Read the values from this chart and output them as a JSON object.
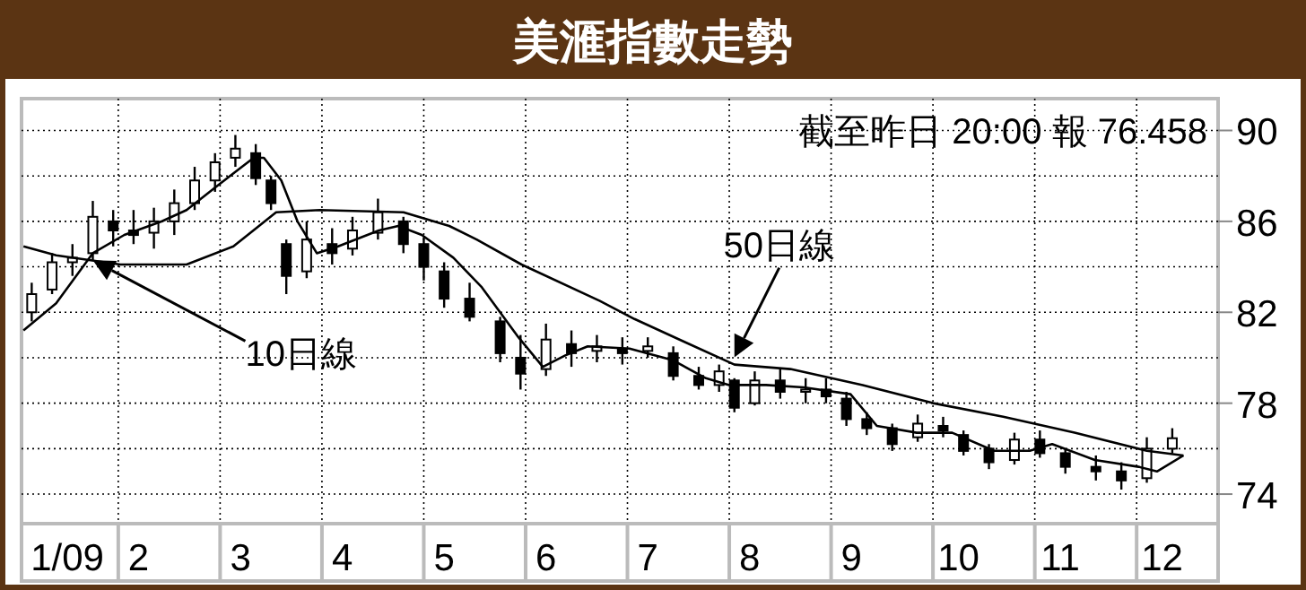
{
  "chart_data": {
    "type": "candlestick",
    "title": "美滙指數走勢",
    "annotations": [
      "截至昨日 20:00 報 76.458"
    ],
    "x": [
      1.15,
      1.35,
      1.55,
      1.75,
      1.95,
      2.15,
      2.35,
      2.55,
      2.75,
      2.95,
      3.15,
      3.35,
      3.5,
      3.65,
      3.85,
      4.1,
      4.3,
      4.55,
      4.8,
      5.0,
      5.2,
      5.45,
      5.75,
      5.95,
      6.2,
      6.45,
      6.7,
      6.95,
      7.2,
      7.45,
      7.7,
      7.9,
      8.05,
      8.25,
      8.5,
      8.75,
      8.95,
      9.15,
      9.35,
      9.6,
      9.85,
      10.1,
      10.3,
      10.55,
      10.8,
      11.05,
      11.3,
      11.6,
      11.85,
      12.1,
      12.35
    ],
    "ohlc": [
      [
        82.0,
        83.3,
        81.6,
        82.8
      ],
      [
        83.0,
        84.6,
        82.8,
        84.2
      ],
      [
        84.2,
        85.0,
        83.6,
        84.4
      ],
      [
        84.6,
        86.9,
        84.3,
        86.2
      ],
      [
        86.0,
        86.5,
        84.9,
        85.6
      ],
      [
        85.6,
        86.5,
        85.0,
        85.4
      ],
      [
        85.5,
        86.6,
        84.8,
        86.0
      ],
      [
        86.0,
        87.4,
        85.4,
        86.8
      ],
      [
        86.8,
        88.4,
        86.5,
        87.8
      ],
      [
        87.8,
        89.0,
        87.3,
        88.6
      ],
      [
        88.8,
        89.8,
        88.4,
        89.2
      ],
      [
        89.0,
        89.4,
        87.6,
        87.9
      ],
      [
        87.8,
        88.0,
        86.5,
        86.8
      ],
      [
        85.0,
        85.2,
        82.8,
        83.6
      ],
      [
        83.8,
        86.0,
        83.5,
        85.2
      ],
      [
        85.0,
        85.7,
        84.1,
        84.6
      ],
      [
        84.8,
        86.2,
        84.5,
        85.6
      ],
      [
        85.5,
        87.0,
        85.2,
        86.4
      ],
      [
        86.0,
        86.2,
        84.6,
        85.0
      ],
      [
        85.0,
        85.3,
        83.4,
        84.0
      ],
      [
        83.8,
        84.2,
        82.2,
        82.6
      ],
      [
        82.6,
        83.3,
        81.6,
        81.8
      ],
      [
        81.6,
        81.8,
        79.8,
        80.2
      ],
      [
        80.0,
        81.0,
        78.6,
        79.3
      ],
      [
        79.5,
        81.5,
        79.2,
        80.8
      ],
      [
        80.6,
        81.2,
        79.6,
        80.2
      ],
      [
        80.3,
        81.0,
        79.8,
        80.5
      ],
      [
        80.4,
        80.9,
        79.7,
        80.2
      ],
      [
        80.3,
        80.9,
        80.0,
        80.5
      ],
      [
        80.2,
        80.5,
        79.0,
        79.2
      ],
      [
        79.2,
        79.6,
        78.6,
        78.8
      ],
      [
        78.8,
        79.7,
        78.5,
        79.4
      ],
      [
        79.0,
        79.1,
        77.6,
        77.8
      ],
      [
        78.0,
        79.4,
        77.9,
        79.0
      ],
      [
        79.0,
        79.5,
        78.2,
        78.5
      ],
      [
        78.5,
        79.1,
        78.0,
        78.6
      ],
      [
        78.6,
        79.1,
        78.0,
        78.3
      ],
      [
        78.2,
        78.5,
        77.0,
        77.3
      ],
      [
        77.3,
        77.6,
        76.6,
        76.9
      ],
      [
        76.9,
        77.1,
        75.9,
        76.2
      ],
      [
        76.5,
        77.5,
        76.3,
        77.1
      ],
      [
        77.0,
        77.4,
        76.5,
        76.8
      ],
      [
        76.6,
        76.8,
        75.7,
        75.9
      ],
      [
        76.0,
        76.2,
        75.1,
        75.4
      ],
      [
        75.5,
        76.7,
        75.3,
        76.4
      ],
      [
        76.4,
        76.8,
        75.6,
        75.8
      ],
      [
        75.8,
        76.0,
        74.9,
        75.2
      ],
      [
        75.2,
        75.7,
        74.6,
        75.0
      ],
      [
        75.0,
        75.4,
        74.2,
        74.6
      ],
      [
        74.7,
        76.5,
        74.5,
        76.0
      ],
      [
        76.0,
        76.9,
        75.8,
        76.458
      ]
    ],
    "series": [
      {
        "name": "10日線",
        "type": "line",
        "color": "#000000",
        "x": [
          1.07,
          1.39,
          1.75,
          2.06,
          2.43,
          2.67,
          2.98,
          3.33,
          3.43,
          3.6,
          3.76,
          3.95,
          4.16,
          4.56,
          4.75,
          4.98,
          5.29,
          5.57,
          5.93,
          6.17,
          6.39,
          6.61,
          7.02,
          7.44,
          7.77,
          8.0,
          8.36,
          8.73,
          9.19,
          9.45,
          9.84,
          10.19,
          10.6,
          10.95,
          11.17,
          11.59,
          12.02,
          12.2,
          12.46
        ],
        "values": [
          81.2,
          82.4,
          84.6,
          85.4,
          86.0,
          86.5,
          87.6,
          88.8,
          88.8,
          87.8,
          86.0,
          84.6,
          84.9,
          85.6,
          85.8,
          85.4,
          84.4,
          83.1,
          80.9,
          79.6,
          80.1,
          80.5,
          80.4,
          79.9,
          79.1,
          78.8,
          78.8,
          78.7,
          78.4,
          77.0,
          76.7,
          76.7,
          75.9,
          75.9,
          76.2,
          75.5,
          75.2,
          75.0,
          75.7
        ]
      },
      {
        "name": "50日線",
        "type": "line",
        "color": "#000000",
        "x": [
          1.07,
          1.39,
          2.02,
          2.67,
          3.13,
          3.55,
          3.98,
          4.8,
          5.25,
          5.52,
          5.96,
          6.73,
          7.07,
          7.56,
          8.05,
          8.6,
          9.31,
          10.0,
          10.69,
          11.39,
          12.1,
          12.46
        ],
        "values": [
          84.9,
          84.5,
          84.1,
          84.1,
          84.9,
          86.4,
          86.5,
          86.4,
          85.8,
          85.2,
          84.1,
          82.5,
          81.7,
          80.7,
          79.7,
          79.5,
          78.8,
          78.0,
          77.4,
          76.7,
          75.9,
          75.7
        ]
      }
    ],
    "xlim": [
      1.05,
      12.8
    ],
    "xticks": [
      {
        "value": 1.5,
        "label": "1/09"
      },
      {
        "value": 2,
        "label": null
      },
      {
        "value": 2.2,
        "label": "2"
      },
      {
        "value": 3,
        "label": null
      },
      {
        "value": 3.2,
        "label": "3"
      },
      {
        "value": 4,
        "label": null
      },
      {
        "value": 4.2,
        "label": "4"
      },
      {
        "value": 5,
        "label": null
      },
      {
        "value": 5.2,
        "label": "5"
      },
      {
        "value": 6,
        "label": null
      },
      {
        "value": 6.2,
        "label": "6"
      },
      {
        "value": 7,
        "label": null
      },
      {
        "value": 7.2,
        "label": "7"
      },
      {
        "value": 8,
        "label": null
      },
      {
        "value": 8.2,
        "label": "8"
      },
      {
        "value": 9,
        "label": null
      },
      {
        "value": 9.2,
        "label": "9"
      },
      {
        "value": 10,
        "label": null
      },
      {
        "value": 10.25,
        "label": "10"
      },
      {
        "value": 11,
        "label": null
      },
      {
        "value": 11.25,
        "label": "11"
      },
      {
        "value": 12,
        "label": null
      },
      {
        "value": 12.25,
        "label": "12"
      }
    ],
    "ylim": [
      72.7,
      91.4
    ],
    "yticks": [
      74,
      {
        "value": 76,
        "label": null
      },
      78,
      {
        "value": 80,
        "label": null
      },
      82,
      {
        "value": 84,
        "label": null
      },
      86,
      {
        "value": 88,
        "label": null
      },
      90
    ],
    "grid": true,
    "line_style": "solid"
  }
}
